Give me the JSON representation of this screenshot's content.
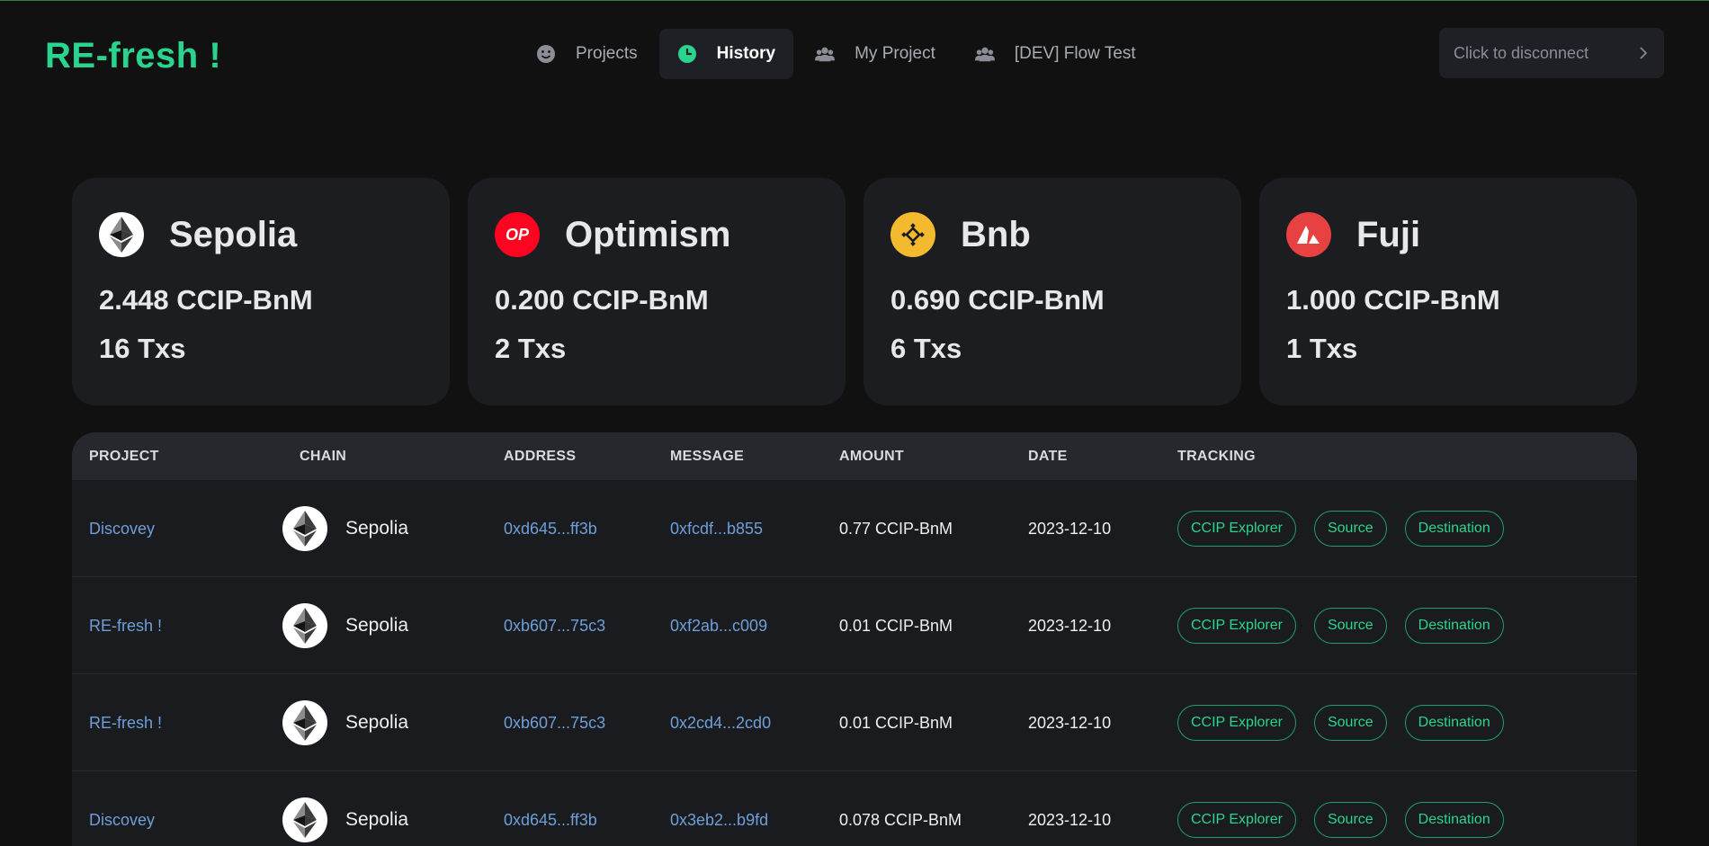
{
  "app": {
    "logo": "RE-fresh !"
  },
  "nav": {
    "items": [
      {
        "label": "Projects",
        "icon": "smiley-icon",
        "active": false
      },
      {
        "label": "History",
        "icon": "clock-icon",
        "active": true
      },
      {
        "label": "My Project",
        "icon": "users-icon",
        "active": false
      },
      {
        "label": "[DEV] Flow Test",
        "icon": "users-icon",
        "active": false
      }
    ]
  },
  "wallet": {
    "disconnect_label": "Click to disconnect",
    "icon": "chevron-right-icon"
  },
  "summary": [
    {
      "chain": "Sepolia",
      "icon": "ethereum-icon",
      "amount": "2.448 CCIP-BnM",
      "txs": "16 Txs"
    },
    {
      "chain": "Optimism",
      "icon": "optimism-icon",
      "icon_text": "OP",
      "amount": "0.200 CCIP-BnM",
      "txs": "2 Txs"
    },
    {
      "chain": "Bnb",
      "icon": "bnb-icon",
      "amount": "0.690 CCIP-BnM",
      "txs": "6 Txs"
    },
    {
      "chain": "Fuji",
      "icon": "avalanche-icon",
      "amount": "1.000 CCIP-BnM",
      "txs": "1 Txs"
    }
  ],
  "table": {
    "headers": {
      "project": "PROJECT",
      "chain": "CHAIN",
      "address": "ADDRESS",
      "message": "MESSAGE",
      "amount": "AMOUNT",
      "date": "DATE",
      "tracking": "TRACKING"
    },
    "tracking_labels": {
      "explorer": "CCIP Explorer",
      "source": "Source",
      "destination": "Destination"
    },
    "rows": [
      {
        "project": "Discovey",
        "chain": "Sepolia",
        "address": "0xd645...ff3b",
        "message": "0xfcdf...b855",
        "amount": "0.77 CCIP-BnM",
        "date": "2023-12-10"
      },
      {
        "project": "RE-fresh !",
        "chain": "Sepolia",
        "address": "0xb607...75c3",
        "message": "0xf2ab...c009",
        "amount": "0.01 CCIP-BnM",
        "date": "2023-12-10"
      },
      {
        "project": "RE-fresh !",
        "chain": "Sepolia",
        "address": "0xb607...75c3",
        "message": "0x2cd4...2cd0",
        "amount": "0.01 CCIP-BnM",
        "date": "2023-12-10"
      },
      {
        "project": "Discovey",
        "chain": "Sepolia",
        "address": "0xd645...ff3b",
        "message": "0x3eb2...b9fd",
        "amount": "0.078 CCIP-BnM",
        "date": "2023-12-10"
      }
    ]
  },
  "colors": {
    "accent": "#2bd48e",
    "link": "#6f9fd8",
    "background": "#111111",
    "card": "#1c1d21",
    "optimism": "#ff0420",
    "bnb": "#f3ba2f",
    "avalanche": "#e84142"
  }
}
